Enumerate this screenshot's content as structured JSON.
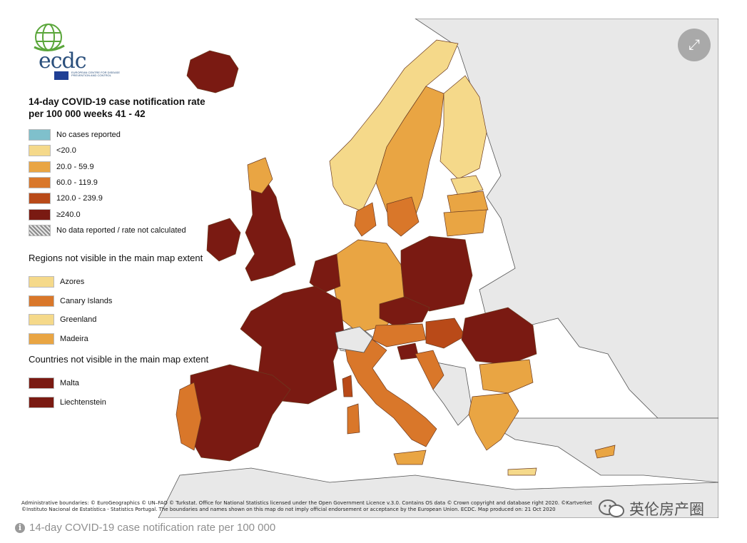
{
  "map": {
    "legend": {
      "title": "14-day COVID-19 case notification rate per 100 000 weeks 41 - 42",
      "items": [
        {
          "label": "No cases reported",
          "color": "#7fc0cc"
        },
        {
          "label": "<20.0",
          "color": "#f5d98a"
        },
        {
          "label": "20.0 - 59.9",
          "color": "#e9a543"
        },
        {
          "label": "60.0 - 119.9",
          "color": "#d9772a"
        },
        {
          "label": "120.0 - 239.9",
          "color": "#b94a18"
        },
        {
          "label": "≥240.0",
          "color": "#7a1a12"
        },
        {
          "label": "No data reported / rate not calculated",
          "color": "hatch"
        }
      ]
    },
    "regions_not_visible": {
      "title": "Regions not visible in the main map extent",
      "items": [
        {
          "label": "Azores",
          "color": "#f5d98a"
        },
        {
          "label": "Canary Islands",
          "color": "#d9772a"
        },
        {
          "label": "Greenland",
          "color": "#f5d98a"
        },
        {
          "label": "Madeira",
          "color": "#e9a543"
        }
      ]
    },
    "countries_not_visible": {
      "title": "Countries not visible in the main map extent",
      "items": [
        {
          "label": "Malta",
          "color": "#7a1a12"
        },
        {
          "label": "Liechtenstein",
          "color": "#7a1a12"
        }
      ]
    },
    "colors": {
      "non_eu_land": "#e8e8e8",
      "sea": "#ffffff",
      "border": "#555555"
    },
    "logo": {
      "word": "ecdc",
      "subtitle": "EUROPEAN CENTRE FOR DISEASE PREVENTION AND CONTROL"
    },
    "attribution": [
      "Administrative boundaries: © EuroGeographics © UN–FAO © Turkstat. Office for National Statistics licensed under the Open Government Licence v.3.0. Contains OS data © Crown copyright and database right 2020. ©Kartverket",
      "©Instituto Nacional de Estatística - Statistics Portugal. The boundaries and names shown on this map do not imply official endorsement or acceptance by the European Union. ECDC. Map produced on: 21 Oct 2020"
    ],
    "watermark": "英伦房产圈",
    "expand_icon": "expand-arrows-icon"
  },
  "caption": {
    "icon": "info-icon",
    "text": "14-day COVID-19 case notification rate per 100 000"
  }
}
